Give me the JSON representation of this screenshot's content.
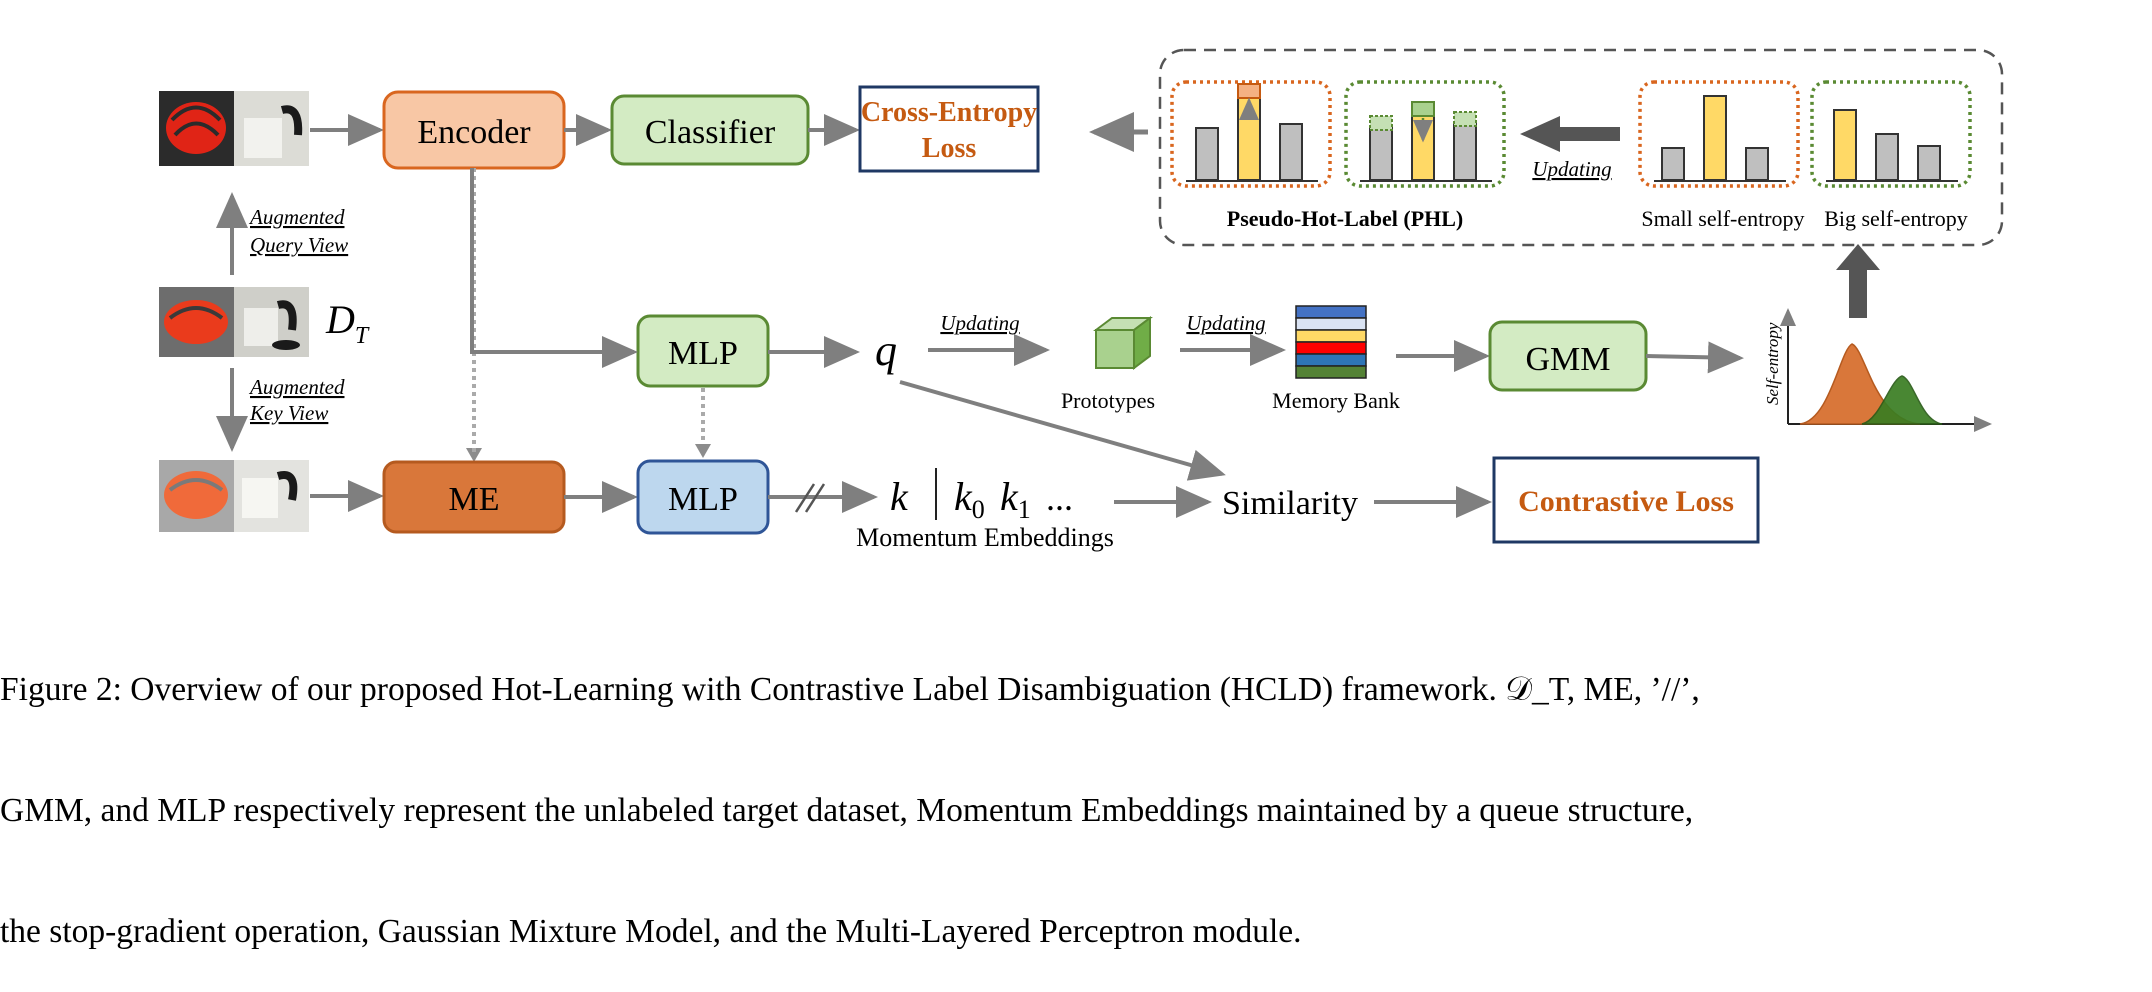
{
  "nodes": {
    "encoder": "Encoder",
    "classifier": "Classifier",
    "cross_entropy_line1": "Cross-Entropy",
    "cross_entropy_line2": "Loss",
    "mlp_top": "MLP",
    "mlp_bottom": "MLP",
    "me": "ME",
    "gmm": "GMM",
    "similarity": "Similarity",
    "contrastive_loss": "Contrastive Loss"
  },
  "labels": {
    "augmented_query_1": "Augmented",
    "augmented_query_2": "Query View",
    "augmented_key_1": "Augmented",
    "augmented_key_2": "Key View",
    "dataset_symbol": "D",
    "dataset_subscript": "T",
    "q": "q",
    "k": "k",
    "k0": "k",
    "k0_sub": "0",
    "k1": "k",
    "k1_sub": "1",
    "ellipsis": "...",
    "momentum_embeddings": "Momentum Embeddings",
    "updating_q": "Updating",
    "updating_proto": "Updating",
    "updating_top": "Updating",
    "prototypes": "Prototypes",
    "memory_bank": "Memory Bank",
    "self_entropy_axis": "Self-entropy",
    "phl": "Pseudo-Hot-Label (PHL)",
    "small_entropy": "Small self-entropy",
    "big_entropy": "Big self-entropy"
  },
  "colors": {
    "encoder_fill": "#f8c7a5",
    "encoder_stroke": "#d9661f",
    "green_fill": "#d3ebc3",
    "green_stroke": "#5a8a33",
    "me_fill": "#d9773a",
    "me_stroke": "#b55a1f",
    "mlp_blue_fill": "#bdd7ee",
    "mlp_blue_stroke": "#2f5597",
    "loss_stroke": "#1f3864",
    "loss_text": "#c55a11",
    "arrow": "#7f7f7f"
  },
  "caption": {
    "line1": "Figure 2: Overview of our proposed Hot-Learning with Contrastive Label Disambiguation (HCLD) framework. 𝒟_T, ME, ’//’,",
    "line2": "GMM, and MLP respectively represent the unlabeled target dataset, Momentum Embeddings maintained by a queue structure,",
    "line3": "the stop-gradient operation, Gaussian Mixture Model, and the Multi-Layered Perceptron module."
  }
}
